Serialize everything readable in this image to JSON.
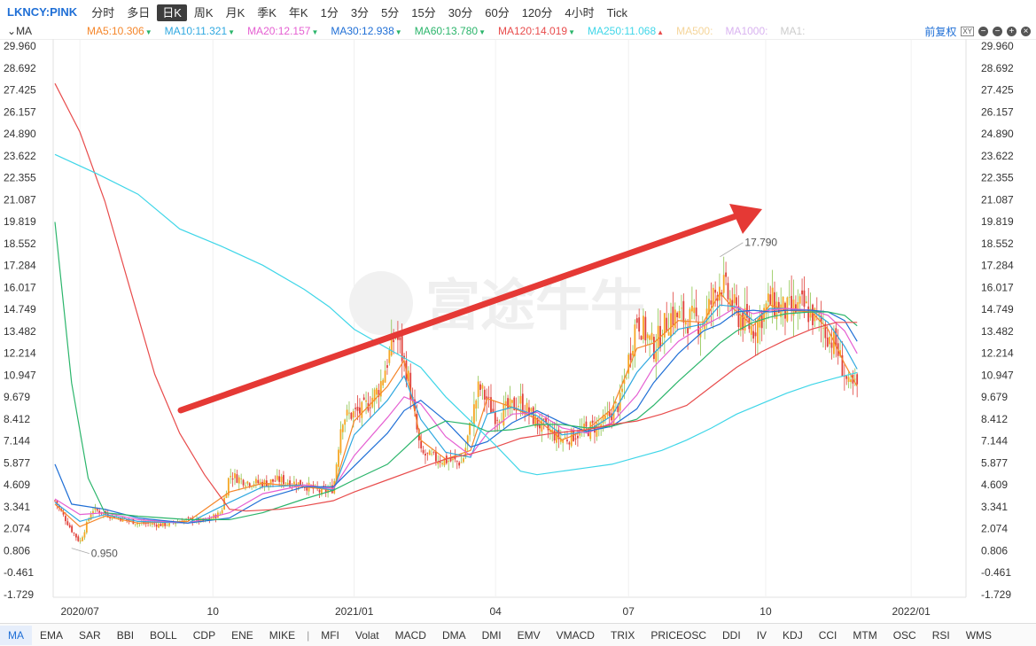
{
  "topbar": {
    "symbol": "LKNCY:PINK",
    "tabs": [
      "分时",
      "多日",
      "日K",
      "周K",
      "月K",
      "季K",
      "年K",
      "1分",
      "3分",
      "5分",
      "15分",
      "30分",
      "60分",
      "120分",
      "4小时",
      "Tick"
    ],
    "active_tab": "日K"
  },
  "ma_bar": {
    "indicator": "MA",
    "items": [
      {
        "text": "MA5:10.306",
        "color": "#f5862a",
        "arrow": "▼"
      },
      {
        "text": "MA10:11.321",
        "color": "#2fa8e0",
        "arrow": "▼"
      },
      {
        "text": "MA20:12.157",
        "color": "#e55fd2",
        "arrow": "▼"
      },
      {
        "text": "MA30:12.938",
        "color": "#1f6fd6",
        "arrow": "▼"
      },
      {
        "text": "MA60:13.780",
        "color": "#2bb56b",
        "arrow": "▼"
      },
      {
        "text": "MA120:14.019",
        "color": "#e84c4c",
        "arrow": "▼"
      },
      {
        "text": "MA250:11.068",
        "color": "#3fd6e8",
        "arrow": "▲"
      },
      {
        "text": "MA500:",
        "color": "#f5d59a",
        "arrow": ""
      },
      {
        "text": "MA1000:",
        "color": "#d9b3f0",
        "arrow": ""
      },
      {
        "text": "MA1:",
        "color": "#cccccc",
        "arrow": ""
      }
    ],
    "price_mode": "前复权",
    "controls": [
      "xy-icon",
      "minus-icon",
      "minus-icon",
      "plus-icon",
      "close-icon"
    ]
  },
  "bottom_tabs": [
    "MA",
    "EMA",
    "SAR",
    "BBI",
    "BOLL",
    "CDP",
    "ENE",
    "MIKE",
    "MFI",
    "Volat",
    "MACD",
    "DMA",
    "DMI",
    "EMV",
    "VMACD",
    "TRIX",
    "PRICEOSC",
    "DDI",
    "IV",
    "KDJ",
    "CCI",
    "MTM",
    "OSC",
    "RSI",
    "WMS"
  ],
  "bottom_active": "MA",
  "chart_data": {
    "type": "candlestick",
    "y_ticks": [
      29.96,
      28.692,
      27.425,
      26.157,
      24.89,
      23.622,
      22.355,
      21.087,
      19.819,
      18.552,
      17.284,
      16.017,
      14.749,
      13.482,
      12.214,
      10.947,
      9.679,
      8.412,
      7.144,
      5.877,
      4.609,
      3.341,
      2.074,
      0.806,
      -0.461,
      -1.729
    ],
    "y_tick_labels": [
      "29.960",
      "28.692",
      "27.425",
      "26.157",
      "24.890",
      "23.622",
      "22.355",
      "21.087",
      "19.819",
      "18.552",
      "17.284",
      "16.017",
      "14.749",
      "13.482",
      "12.214",
      "10.947",
      "9.679",
      "8.412",
      "7.144",
      "5.877",
      "4.609",
      "3.341",
      "2.074",
      "0.806",
      "-0.461",
      "-1.729"
    ],
    "ylim": [
      -1.729,
      29.96
    ],
    "x_labels": [
      "2020/07",
      "10",
      "2021/01",
      "04",
      "07",
      "10",
      "2022/01"
    ],
    "x_label_positions": [
      0.03,
      0.19,
      0.36,
      0.53,
      0.69,
      0.855,
      1.03
    ],
    "annotations": [
      {
        "text": "17.790",
        "value": 17.79,
        "at": 0.8
      },
      {
        "text": "0.950",
        "value": 0.95,
        "at": 0.02
      }
    ],
    "watermark": "富途牛牛",
    "close_trend": [
      [
        0.0,
        3.7
      ],
      [
        0.02,
        2.0
      ],
      [
        0.03,
        1.3
      ],
      [
        0.045,
        3.2
      ],
      [
        0.07,
        2.8
      ],
      [
        0.1,
        2.4
      ],
      [
        0.13,
        2.3
      ],
      [
        0.16,
        2.6
      ],
      [
        0.18,
        2.5
      ],
      [
        0.2,
        3.0
      ],
      [
        0.21,
        5.2
      ],
      [
        0.23,
        4.8
      ],
      [
        0.25,
        4.7
      ],
      [
        0.27,
        4.9
      ],
      [
        0.3,
        4.6
      ],
      [
        0.32,
        4.2
      ],
      [
        0.335,
        4.4
      ],
      [
        0.345,
        8.5
      ],
      [
        0.37,
        8.9
      ],
      [
        0.39,
        10.2
      ],
      [
        0.41,
        13.4
      ],
      [
        0.425,
        10.8
      ],
      [
        0.44,
        6.4
      ],
      [
        0.46,
        6.1
      ],
      [
        0.49,
        5.9
      ],
      [
        0.51,
        10.3
      ],
      [
        0.53,
        8.6
      ],
      [
        0.56,
        9.4
      ],
      [
        0.58,
        8.2
      ],
      [
        0.61,
        7.2
      ],
      [
        0.63,
        7.6
      ],
      [
        0.66,
        8.2
      ],
      [
        0.68,
        9.4
      ],
      [
        0.7,
        14.3
      ],
      [
        0.72,
        12.5
      ],
      [
        0.74,
        14.4
      ],
      [
        0.76,
        14.2
      ],
      [
        0.78,
        14.0
      ],
      [
        0.8,
        16.4
      ],
      [
        0.82,
        14.5
      ],
      [
        0.84,
        13.6
      ],
      [
        0.86,
        15.2
      ],
      [
        0.88,
        14.6
      ],
      [
        0.9,
        14.9
      ],
      [
        0.92,
        14.0
      ],
      [
        0.94,
        12.6
      ],
      [
        0.955,
        10.2
      ],
      [
        0.965,
        10.3
      ]
    ],
    "series": [
      {
        "name": "MA5",
        "color": "#f5862a",
        "points": [
          [
            0.0,
            3.5
          ],
          [
            0.03,
            2.2
          ],
          [
            0.06,
            2.8
          ],
          [
            0.1,
            2.4
          ],
          [
            0.16,
            2.5
          ],
          [
            0.21,
            4.2
          ],
          [
            0.25,
            4.7
          ],
          [
            0.3,
            4.5
          ],
          [
            0.335,
            4.3
          ],
          [
            0.36,
            8.3
          ],
          [
            0.4,
            10.3
          ],
          [
            0.42,
            11.8
          ],
          [
            0.44,
            7.2
          ],
          [
            0.47,
            6.1
          ],
          [
            0.5,
            6.6
          ],
          [
            0.52,
            9.6
          ],
          [
            0.55,
            9.1
          ],
          [
            0.58,
            8.4
          ],
          [
            0.61,
            7.2
          ],
          [
            0.64,
            7.8
          ],
          [
            0.67,
            9.0
          ],
          [
            0.7,
            12.5
          ],
          [
            0.72,
            12.8
          ],
          [
            0.75,
            14.1
          ],
          [
            0.78,
            14.0
          ],
          [
            0.8,
            15.7
          ],
          [
            0.82,
            14.6
          ],
          [
            0.84,
            13.8
          ],
          [
            0.86,
            15.0
          ],
          [
            0.88,
            14.7
          ],
          [
            0.91,
            14.6
          ],
          [
            0.93,
            13.6
          ],
          [
            0.95,
            11.6
          ],
          [
            0.965,
            10.3
          ]
        ]
      },
      {
        "name": "MA10",
        "color": "#2fa8e0",
        "points": [
          [
            0.0,
            3.6
          ],
          [
            0.03,
            2.5
          ],
          [
            0.06,
            2.9
          ],
          [
            0.1,
            2.5
          ],
          [
            0.16,
            2.4
          ],
          [
            0.21,
            3.6
          ],
          [
            0.25,
            4.5
          ],
          [
            0.3,
            4.6
          ],
          [
            0.335,
            4.3
          ],
          [
            0.36,
            7.5
          ],
          [
            0.4,
            9.5
          ],
          [
            0.42,
            10.9
          ],
          [
            0.44,
            8.4
          ],
          [
            0.47,
            6.5
          ],
          [
            0.5,
            6.2
          ],
          [
            0.52,
            8.7
          ],
          [
            0.55,
            9.1
          ],
          [
            0.58,
            8.6
          ],
          [
            0.61,
            7.5
          ],
          [
            0.64,
            7.7
          ],
          [
            0.67,
            8.6
          ],
          [
            0.7,
            11.1
          ],
          [
            0.72,
            12.2
          ],
          [
            0.75,
            13.6
          ],
          [
            0.78,
            13.9
          ],
          [
            0.8,
            15.0
          ],
          [
            0.82,
            14.9
          ],
          [
            0.84,
            14.1
          ],
          [
            0.86,
            14.8
          ],
          [
            0.88,
            14.8
          ],
          [
            0.91,
            14.7
          ],
          [
            0.93,
            14.0
          ],
          [
            0.95,
            12.6
          ],
          [
            0.965,
            11.3
          ]
        ]
      },
      {
        "name": "MA20",
        "color": "#e55fd2",
        "points": [
          [
            0.0,
            3.8
          ],
          [
            0.03,
            2.9
          ],
          [
            0.06,
            3.0
          ],
          [
            0.1,
            2.6
          ],
          [
            0.16,
            2.4
          ],
          [
            0.21,
            3.0
          ],
          [
            0.25,
            4.1
          ],
          [
            0.3,
            4.6
          ],
          [
            0.335,
            4.4
          ],
          [
            0.36,
            6.3
          ],
          [
            0.4,
            8.5
          ],
          [
            0.42,
            9.7
          ],
          [
            0.44,
            9.3
          ],
          [
            0.47,
            7.4
          ],
          [
            0.5,
            6.3
          ],
          [
            0.52,
            7.6
          ],
          [
            0.55,
            8.7
          ],
          [
            0.58,
            8.8
          ],
          [
            0.61,
            7.9
          ],
          [
            0.64,
            7.6
          ],
          [
            0.67,
            8.2
          ],
          [
            0.7,
            9.8
          ],
          [
            0.72,
            11.4
          ],
          [
            0.75,
            12.9
          ],
          [
            0.78,
            13.8
          ],
          [
            0.8,
            14.3
          ],
          [
            0.82,
            14.9
          ],
          [
            0.84,
            14.5
          ],
          [
            0.86,
            14.7
          ],
          [
            0.88,
            14.8
          ],
          [
            0.91,
            14.7
          ],
          [
            0.93,
            14.4
          ],
          [
            0.95,
            13.5
          ],
          [
            0.965,
            12.2
          ]
        ]
      },
      {
        "name": "MA30",
        "color": "#1f6fd6",
        "points": [
          [
            0.0,
            5.8
          ],
          [
            0.02,
            3.5
          ],
          [
            0.06,
            3.2
          ],
          [
            0.1,
            2.7
          ],
          [
            0.16,
            2.4
          ],
          [
            0.21,
            2.7
          ],
          [
            0.25,
            3.8
          ],
          [
            0.3,
            4.5
          ],
          [
            0.335,
            4.5
          ],
          [
            0.36,
            5.7
          ],
          [
            0.4,
            7.6
          ],
          [
            0.42,
            8.9
          ],
          [
            0.44,
            9.5
          ],
          [
            0.47,
            8.3
          ],
          [
            0.5,
            6.8
          ],
          [
            0.52,
            7.1
          ],
          [
            0.55,
            8.2
          ],
          [
            0.58,
            8.9
          ],
          [
            0.61,
            8.2
          ],
          [
            0.64,
            7.7
          ],
          [
            0.67,
            8.0
          ],
          [
            0.7,
            9.0
          ],
          [
            0.72,
            10.5
          ],
          [
            0.75,
            12.2
          ],
          [
            0.78,
            13.5
          ],
          [
            0.8,
            13.9
          ],
          [
            0.82,
            14.6
          ],
          [
            0.84,
            14.7
          ],
          [
            0.86,
            14.6
          ],
          [
            0.88,
            14.7
          ],
          [
            0.91,
            14.7
          ],
          [
            0.93,
            14.6
          ],
          [
            0.95,
            14.1
          ],
          [
            0.965,
            12.9
          ]
        ]
      },
      {
        "name": "MA60",
        "color": "#2bb56b",
        "points": [
          [
            0.0,
            19.8
          ],
          [
            0.02,
            10.5
          ],
          [
            0.04,
            5.0
          ],
          [
            0.06,
            3.0
          ],
          [
            0.1,
            2.8
          ],
          [
            0.16,
            2.6
          ],
          [
            0.21,
            2.6
          ],
          [
            0.25,
            3.0
          ],
          [
            0.3,
            3.8
          ],
          [
            0.335,
            4.3
          ],
          [
            0.36,
            4.9
          ],
          [
            0.4,
            5.8
          ],
          [
            0.42,
            6.7
          ],
          [
            0.44,
            7.6
          ],
          [
            0.47,
            8.3
          ],
          [
            0.5,
            8.1
          ],
          [
            0.52,
            7.7
          ],
          [
            0.55,
            7.8
          ],
          [
            0.58,
            8.1
          ],
          [
            0.61,
            8.1
          ],
          [
            0.64,
            7.9
          ],
          [
            0.67,
            8.0
          ],
          [
            0.7,
            8.4
          ],
          [
            0.72,
            9.2
          ],
          [
            0.75,
            10.6
          ],
          [
            0.78,
            11.9
          ],
          [
            0.8,
            12.8
          ],
          [
            0.82,
            13.5
          ],
          [
            0.84,
            14.0
          ],
          [
            0.86,
            14.3
          ],
          [
            0.88,
            14.5
          ],
          [
            0.91,
            14.6
          ],
          [
            0.93,
            14.6
          ],
          [
            0.95,
            14.4
          ],
          [
            0.965,
            13.8
          ]
        ]
      },
      {
        "name": "MA120",
        "color": "#e84c4c",
        "points": [
          [
            0.0,
            27.8
          ],
          [
            0.03,
            25.0
          ],
          [
            0.06,
            21.0
          ],
          [
            0.09,
            16.0
          ],
          [
            0.12,
            11.0
          ],
          [
            0.15,
            7.6
          ],
          [
            0.18,
            5.2
          ],
          [
            0.21,
            3.2
          ],
          [
            0.23,
            3.1
          ],
          [
            0.27,
            3.2
          ],
          [
            0.3,
            3.4
          ],
          [
            0.335,
            3.7
          ],
          [
            0.36,
            4.2
          ],
          [
            0.4,
            4.9
          ],
          [
            0.44,
            5.6
          ],
          [
            0.47,
            6.1
          ],
          [
            0.5,
            6.4
          ],
          [
            0.53,
            6.8
          ],
          [
            0.56,
            7.3
          ],
          [
            0.6,
            7.6
          ],
          [
            0.64,
            7.8
          ],
          [
            0.67,
            8.1
          ],
          [
            0.7,
            8.3
          ],
          [
            0.73,
            8.7
          ],
          [
            0.76,
            9.2
          ],
          [
            0.79,
            10.3
          ],
          [
            0.82,
            11.4
          ],
          [
            0.85,
            12.3
          ],
          [
            0.88,
            13.0
          ],
          [
            0.91,
            13.6
          ],
          [
            0.94,
            14.0
          ],
          [
            0.965,
            14.0
          ]
        ]
      },
      {
        "name": "MA250",
        "color": "#3fd6e8",
        "points": [
          [
            0.0,
            23.7
          ],
          [
            0.05,
            22.6
          ],
          [
            0.1,
            21.4
          ],
          [
            0.15,
            19.4
          ],
          [
            0.2,
            18.4
          ],
          [
            0.25,
            17.3
          ],
          [
            0.3,
            15.9
          ],
          [
            0.33,
            14.9
          ],
          [
            0.36,
            13.6
          ],
          [
            0.4,
            12.5
          ],
          [
            0.44,
            11.4
          ],
          [
            0.47,
            9.7
          ],
          [
            0.5,
            8.3
          ],
          [
            0.53,
            6.9
          ],
          [
            0.56,
            5.4
          ],
          [
            0.58,
            5.2
          ],
          [
            0.61,
            5.4
          ],
          [
            0.64,
            5.6
          ],
          [
            0.67,
            5.8
          ],
          [
            0.7,
            6.2
          ],
          [
            0.73,
            6.6
          ],
          [
            0.76,
            7.2
          ],
          [
            0.79,
            7.9
          ],
          [
            0.82,
            8.7
          ],
          [
            0.85,
            9.3
          ],
          [
            0.88,
            9.9
          ],
          [
            0.91,
            10.4
          ],
          [
            0.94,
            10.8
          ],
          [
            0.965,
            11.1
          ]
        ]
      }
    ]
  }
}
